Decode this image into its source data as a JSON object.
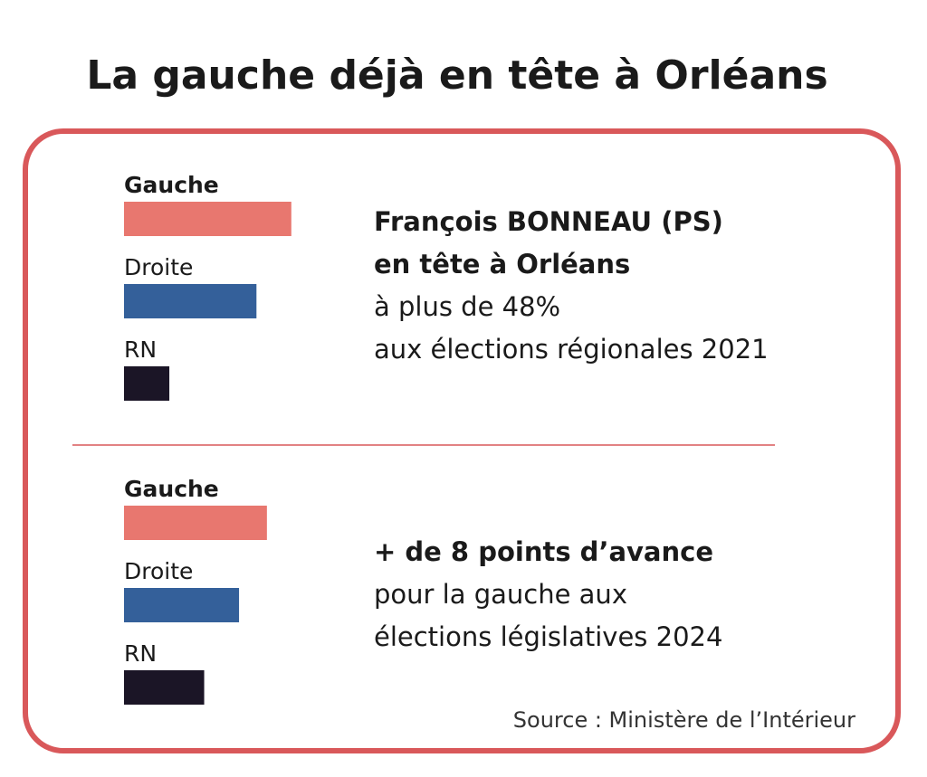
{
  "title": "La gauche déjà en tête à Orléans",
  "source": "Source : Ministère de l’Intérieur",
  "chart_data": [
    {
      "type": "bar",
      "orientation": "horizontal",
      "categories": [
        "Gauche",
        "Droite",
        "RN"
      ],
      "values": [
        48,
        38,
        13
      ],
      "colors": [
        "#e8776f",
        "#34609a",
        "#1b1526"
      ],
      "xlim": [
        0,
        100
      ],
      "annotations": [
        {
          "text": "François BONNEAU (PS)",
          "bold": true
        },
        {
          "text": "en tête à Orléans",
          "bold": true
        },
        {
          "text": "à plus de 48%",
          "bold": false
        },
        {
          "text": "aux élections régionales 2021",
          "bold": false
        }
      ]
    },
    {
      "type": "bar",
      "orientation": "horizontal",
      "categories": [
        "Gauche",
        "Droite",
        "RN"
      ],
      "values": [
        41,
        33,
        23
      ],
      "colors": [
        "#e8776f",
        "#34609a",
        "#1b1526"
      ],
      "xlim": [
        0,
        100
      ],
      "annotations": [
        {
          "text": "+ de 8 points d’avance",
          "bold": true
        },
        {
          "text": "pour la gauche aux",
          "bold": false
        },
        {
          "text": "élections législatives 2024",
          "bold": false
        }
      ]
    }
  ]
}
